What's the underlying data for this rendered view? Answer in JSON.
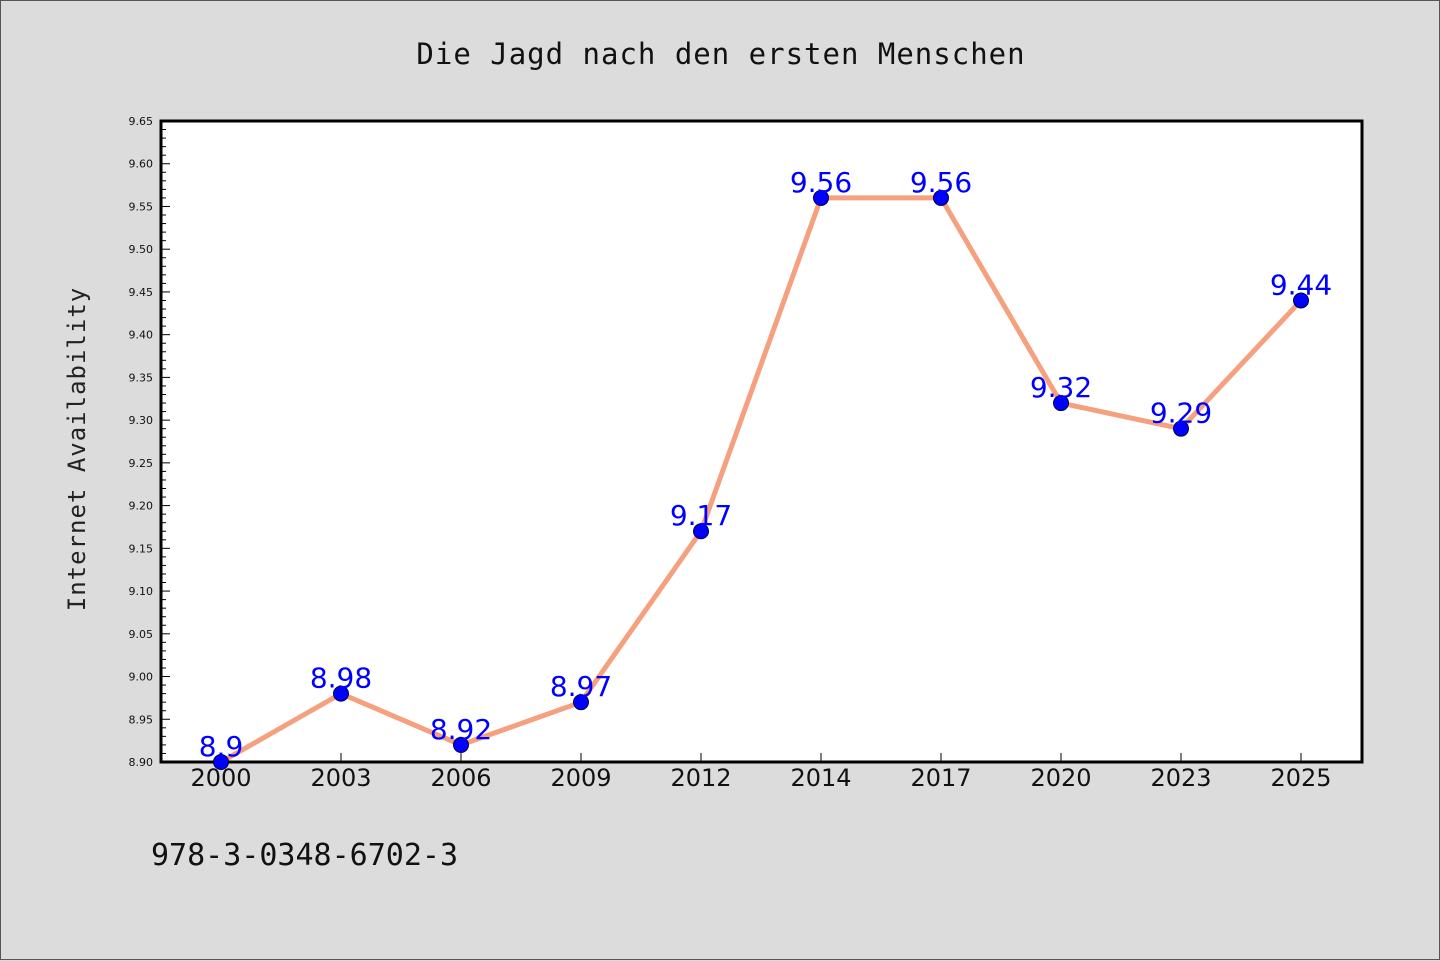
{
  "chart_data": {
    "type": "line",
    "title": "Die Jagd nach den ersten Menschen",
    "xlabel": "",
    "ylabel": "Internet Availability",
    "categories": [
      "2000",
      "2003",
      "2006",
      "2009",
      "2012",
      "2014",
      "2017",
      "2020",
      "2023",
      "2025"
    ],
    "series": [
      {
        "values": [
          8.9,
          8.98,
          8.92,
          8.97,
          9.17,
          9.56,
          9.56,
          9.32,
          9.29,
          9.44
        ],
        "labels": [
          "8.9",
          "8.98",
          "8.92",
          "8.97",
          "9.17",
          "9.56",
          "9.56",
          "9.32",
          "9.29",
          "9.44"
        ],
        "line_color": "#f5a07e",
        "marker_color": "#0000ff"
      }
    ],
    "ylim": [
      8.9,
      9.65
    ],
    "yticks": [
      "8.90",
      "8.95",
      "9.00",
      "9.05",
      "9.10",
      "9.15",
      "9.20",
      "9.25",
      "9.30",
      "9.35",
      "9.40",
      "9.45",
      "9.50",
      "9.55",
      "9.60",
      "9.65"
    ],
    "grid": false,
    "legend": "none"
  },
  "footer": {
    "isbn": "978-3-0348-6702-3"
  }
}
